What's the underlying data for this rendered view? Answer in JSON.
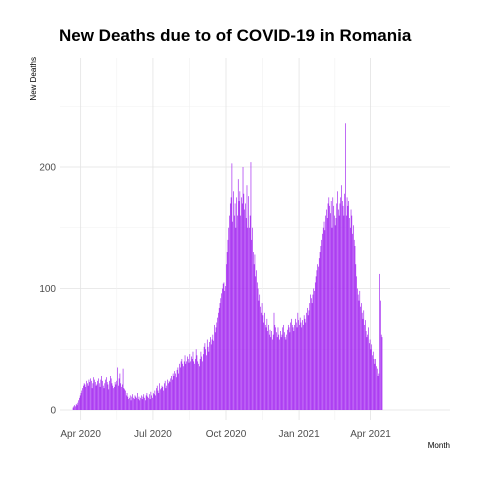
{
  "chart_data": {
    "type": "bar",
    "title": "New Deaths due to of COVID-19 in Romania",
    "xlabel": "Month",
    "ylabel": "New Deaths",
    "x_ticks": [
      {
        "date": "2020-04-01",
        "label": "Apr 2020"
      },
      {
        "date": "2020-07-01",
        "label": "Jul 2020"
      },
      {
        "date": "2020-10-01",
        "label": "Oct 2020"
      },
      {
        "date": "2021-01-01",
        "label": "Jan 2021"
      },
      {
        "date": "2021-04-01",
        "label": "Apr 2021"
      }
    ],
    "y_ticks": [
      0,
      100,
      200
    ],
    "xlim": [
      "2020-03-06",
      "2021-07-10"
    ],
    "ylim": [
      0,
      250
    ],
    "grid": true,
    "bar_color": "#a020f0",
    "series": [
      {
        "frequency": "daily",
        "start_date": "2020-03-22",
        "values": [
          2,
          3,
          4,
          3,
          5,
          4,
          6,
          8,
          10,
          12,
          14,
          16,
          18,
          20,
          22,
          21,
          19,
          24,
          22,
          20,
          25,
          23,
          26,
          24,
          18,
          22,
          27,
          25,
          23,
          20,
          21,
          24,
          26,
          22,
          19,
          25,
          28,
          24,
          20,
          18,
          22,
          25,
          27,
          23,
          21,
          17,
          24,
          28,
          26,
          22,
          20,
          18,
          19,
          23,
          21,
          24,
          35,
          20,
          26,
          30,
          22,
          19,
          21,
          34,
          18,
          17,
          16,
          12,
          14,
          11,
          9,
          10,
          12,
          8,
          11,
          13,
          10,
          9,
          12,
          11,
          10,
          14,
          9,
          11,
          8,
          10,
          12,
          9,
          11,
          13,
          10,
          8,
          12,
          14,
          11,
          10,
          13,
          9,
          15,
          12,
          10,
          14,
          13,
          16,
          12,
          18,
          20,
          16,
          14,
          22,
          17,
          18,
          20,
          19,
          16,
          22,
          24,
          18,
          20,
          25,
          22,
          24,
          23,
          26,
          28,
          25,
          30,
          28,
          32,
          30,
          27,
          33,
          35,
          30,
          38,
          35,
          40,
          42,
          38,
          36,
          40,
          45,
          38,
          40,
          44,
          42,
          39,
          46,
          40,
          44,
          42,
          48,
          40,
          38,
          42,
          50,
          45,
          40,
          38,
          36,
          42,
          48,
          44,
          40,
          46,
          52,
          55,
          50,
          45,
          58,
          52,
          48,
          56,
          60,
          54,
          58,
          62,
          57,
          70,
          64,
          68,
          72,
          76,
          80,
          84,
          88,
          92,
          96,
          100,
          104,
          105,
          98,
          102,
          120,
          130,
          140,
          150,
          160,
          170,
          175,
          203,
          155,
          180,
          160,
          170,
          150,
          175,
          160,
          190,
          172,
          180,
          160,
          175,
          170,
          200,
          178,
          165,
          170,
          158,
          185,
          150,
          176,
          150,
          160,
          204,
          140,
          150,
          130,
          120,
          128,
          110,
          115,
          105,
          100,
          90,
          95,
          85,
          80,
          88,
          78,
          72,
          80,
          70,
          68,
          75,
          65,
          70,
          62,
          66,
          60,
          65,
          58,
          62,
          80,
          70,
          68,
          64,
          60,
          68,
          62,
          58,
          65,
          60,
          62,
          68,
          70,
          64,
          60,
          58,
          62,
          66,
          70,
          68,
          64,
          72,
          75,
          70,
          68,
          65,
          70,
          75,
          72,
          68,
          80,
          74,
          70,
          76,
          72,
          68,
          74,
          70,
          78,
          75,
          72,
          80,
          84,
          78,
          82,
          88,
          95,
          92,
          88,
          95,
          100,
          98,
          105,
          110,
          115,
          120,
          118,
          125,
          130,
          135,
          140,
          145,
          150,
          155,
          148,
          160,
          165,
          158,
          170,
          175,
          168,
          162,
          172,
          150,
          175,
          168,
          160,
          152,
          158,
          170,
          180,
          165,
          160,
          170,
          175,
          185,
          172,
          168,
          160,
          178,
          236,
          160,
          175,
          168,
          172,
          158,
          150,
          165,
          160,
          145,
          152,
          140,
          135,
          120,
          110,
          100,
          95,
          90,
          98,
          85,
          88,
          80,
          75,
          82,
          70,
          74,
          65,
          60,
          62,
          68,
          55,
          58,
          50,
          54,
          45,
          48,
          42,
          38,
          42,
          36,
          34,
          28,
          30,
          112,
          90,
          62,
          60
        ]
      }
    ]
  }
}
